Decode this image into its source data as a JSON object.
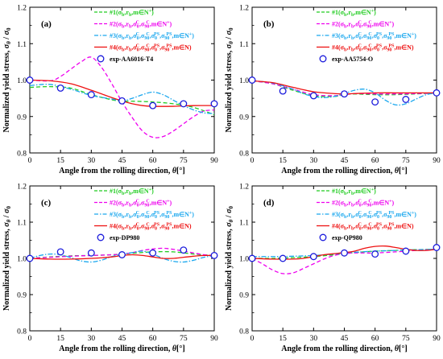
{
  "chart_data": [
    {
      "type": "line",
      "panel_label": "(a)",
      "xlabel": "Angle from the rolling direction, θ[°]",
      "ylabel": "Normalized yield stress, σθ / σ0",
      "xlim": [
        0,
        90
      ],
      "ylim": [
        0.8,
        1.2
      ],
      "xticks": [
        "0",
        "15",
        "30",
        "45",
        "60",
        "75",
        "90"
      ],
      "yticks": [
        "0.8",
        "0.9",
        "1.0",
        "1.1",
        "1.2"
      ],
      "legend_placement": "top-right",
      "series": [
        {
          "name": "#1(σb,rb,m∈N⁺)",
          "color": "#22cc22",
          "dash": "dash",
          "x": [
            0,
            10,
            20,
            30,
            40,
            45,
            50,
            60,
            70,
            80,
            90
          ],
          "y": [
            0.98,
            0.982,
            0.978,
            0.96,
            0.946,
            0.942,
            0.942,
            0.94,
            0.935,
            0.925,
            0.905
          ]
        },
        {
          "name": "#2(σb,rb,σC0,σC90,m∈N⁺)",
          "color": "#ee00ee",
          "dash": "dash",
          "x": [
            0,
            10,
            15,
            20,
            25,
            30,
            35,
            40,
            45,
            50,
            55,
            60,
            65,
            70,
            75,
            80,
            85,
            90
          ],
          "y": [
            1.0,
            0.998,
            1.01,
            1.03,
            1.05,
            1.063,
            1.035,
            0.99,
            0.94,
            0.897,
            0.86,
            0.843,
            0.845,
            0.86,
            0.88,
            0.9,
            0.915,
            0.918
          ]
        },
        {
          "name": "#3(σb,rb,σC0,σC90,σPS0,σPS90,m∈N⁺)",
          "color": "#1aa7ee",
          "dash": "dashdot",
          "x": [
            0,
            10,
            20,
            30,
            40,
            45,
            50,
            55,
            60,
            65,
            70,
            75,
            80,
            85,
            90
          ],
          "y": [
            0.985,
            0.988,
            0.975,
            0.958,
            0.948,
            0.943,
            0.95,
            0.96,
            0.967,
            0.96,
            0.945,
            0.93,
            0.918,
            0.91,
            0.908
          ]
        },
        {
          "name": "#4(σb,rb,σC0,σC90,σPS0,σPS90,m∈N)",
          "color": "#ee1111",
          "dash": "solid",
          "x": [
            0,
            10,
            20,
            30,
            40,
            45,
            50,
            55,
            60,
            70,
            80,
            90
          ],
          "y": [
            1.0,
            0.998,
            0.99,
            0.972,
            0.952,
            0.943,
            0.935,
            0.93,
            0.928,
            0.928,
            0.93,
            0.93
          ]
        }
      ],
      "experiment": {
        "name": "exp-AA6016-T4",
        "color": "#1a1adc",
        "x": [
          0,
          15,
          30,
          45,
          60,
          75,
          90
        ],
        "y": [
          1.0,
          0.978,
          0.96,
          0.943,
          0.93,
          0.935,
          0.935
        ]
      }
    },
    {
      "type": "line",
      "panel_label": "(b)",
      "xlabel": "Angle from the rolling direction, θ[°]",
      "ylabel": "Normalized yield stress, σθ / σ0",
      "xlim": [
        0,
        90
      ],
      "ylim": [
        0.8,
        1.2
      ],
      "xticks": [
        "0",
        "15",
        "30",
        "45",
        "60",
        "75",
        "90"
      ],
      "yticks": [
        "0.8",
        "0.9",
        "1.0",
        "1.1",
        "1.2"
      ],
      "legend_placement": "top-right",
      "series": [
        {
          "name": "#1(σb,rb,m∈N⁺)",
          "color": "#22cc22",
          "dash": "dash",
          "x": [
            0,
            10,
            20,
            30,
            40,
            45,
            50,
            60,
            70,
            80,
            90
          ],
          "y": [
            0.998,
            0.99,
            0.972,
            0.957,
            0.955,
            0.96,
            0.962,
            0.96,
            0.96,
            0.962,
            0.965
          ]
        },
        {
          "name": "#2(σb,rb,σC0,σC90,m∈N⁺)",
          "color": "#ee00ee",
          "dash": "dash",
          "x": [
            0,
            10,
            20,
            30,
            40,
            45,
            50,
            60,
            70,
            80,
            90
          ],
          "y": [
            0.998,
            0.99,
            0.975,
            0.96,
            0.957,
            0.96,
            0.963,
            0.962,
            0.962,
            0.963,
            0.965
          ]
        },
        {
          "name": "#3(σb,rb,σC0,σC90,σPS0,σPS90,m∈N⁺)",
          "color": "#1aa7ee",
          "dash": "dashdot",
          "x": [
            0,
            10,
            20,
            25,
            30,
            35,
            40,
            45,
            50,
            55,
            60,
            65,
            70,
            75,
            80,
            85,
            90
          ],
          "y": [
            0.998,
            0.992,
            0.975,
            0.963,
            0.955,
            0.952,
            0.955,
            0.963,
            0.972,
            0.975,
            0.965,
            0.945,
            0.932,
            0.935,
            0.948,
            0.96,
            0.965
          ]
        },
        {
          "name": "#4(σb,rb,σC0,σC90,σPS0,σPS90,m∈N)",
          "color": "#ee1111",
          "dash": "solid",
          "x": [
            0,
            10,
            20,
            30,
            40,
            45,
            50,
            60,
            70,
            80,
            90
          ],
          "y": [
            0.998,
            0.993,
            0.98,
            0.968,
            0.963,
            0.962,
            0.963,
            0.965,
            0.965,
            0.965,
            0.965
          ]
        }
      ],
      "experiment": {
        "name": "exp-AA5754-O",
        "color": "#1a1adc",
        "x": [
          0,
          15,
          30,
          45,
          60,
          75,
          90
        ],
        "y": [
          1.0,
          0.97,
          0.957,
          0.962,
          0.94,
          0.947,
          0.965
        ]
      }
    },
    {
      "type": "line",
      "panel_label": "(c)",
      "xlabel": "Angle from the rolling direction, θ[°]",
      "ylabel": "Normalized yield stress, σθ / σ0",
      "xlim": [
        0,
        90
      ],
      "ylim": [
        0.8,
        1.2
      ],
      "xticks": [
        "0",
        "15",
        "30",
        "45",
        "60",
        "75",
        "90"
      ],
      "yticks": [
        "0.8",
        "0.9",
        "1.0",
        "1.1",
        "1.2"
      ],
      "legend_placement": "top-right",
      "series": [
        {
          "name": "#1(σb,rb,m∈N⁺)",
          "color": "#22cc22",
          "dash": "dash",
          "x": [
            0,
            10,
            20,
            30,
            40,
            45,
            50,
            60,
            70,
            80,
            90
          ],
          "y": [
            1.0,
            1.004,
            1.007,
            1.008,
            1.01,
            1.012,
            1.014,
            1.018,
            1.018,
            1.012,
            1.008
          ]
        },
        {
          "name": "#2(σb,rb,σC0,σC90,m∈N⁺)",
          "color": "#ee00ee",
          "dash": "dash",
          "x": [
            0,
            10,
            20,
            30,
            40,
            45,
            50,
            55,
            60,
            65,
            70,
            75,
            80,
            85,
            90
          ],
          "y": [
            1.0,
            1.003,
            1.006,
            1.008,
            1.01,
            1.012,
            1.016,
            1.022,
            1.026,
            1.028,
            1.025,
            1.02,
            1.015,
            1.01,
            1.008
          ]
        },
        {
          "name": "#3(σb,rb,σC0,σC90,σPS0,σPS90,m∈N⁺)",
          "color": "#1aa7ee",
          "dash": "dashdot",
          "x": [
            0,
            5,
            10,
            15,
            20,
            25,
            30,
            35,
            40,
            45,
            50,
            55,
            60,
            65,
            70,
            75,
            80,
            85,
            90
          ],
          "y": [
            1.0,
            1.008,
            1.012,
            1.01,
            1.002,
            0.993,
            0.99,
            0.995,
            1.005,
            1.012,
            1.016,
            1.02,
            1.012,
            1.0,
            0.992,
            0.99,
            0.995,
            1.003,
            1.008
          ]
        },
        {
          "name": "#4(σb,rb,σC0,σC90,σPS0,σPS90,m∈N)",
          "color": "#ee1111",
          "dash": "solid",
          "x": [
            0,
            10,
            20,
            30,
            40,
            45,
            50,
            55,
            60,
            65,
            70,
            75,
            80,
            85,
            90
          ],
          "y": [
            1.0,
            0.998,
            0.998,
            1.0,
            1.004,
            1.008,
            1.01,
            1.008,
            1.004,
            1.0,
            1.0,
            1.003,
            1.006,
            1.008,
            1.008
          ]
        }
      ],
      "experiment": {
        "name": "exp-DP980",
        "color": "#1a1adc",
        "x": [
          0,
          15,
          30,
          45,
          60,
          75,
          90
        ],
        "y": [
          1.0,
          1.018,
          1.015,
          1.01,
          1.015,
          1.023,
          1.008
        ]
      }
    },
    {
      "type": "line",
      "panel_label": "(d)",
      "xlabel": "Angle from the rolling direction, θ[°]",
      "ylabel": "Normalized yield stress, σθ / σ0",
      "xlim": [
        0,
        90
      ],
      "ylim": [
        0.8,
        1.2
      ],
      "xticks": [
        "0",
        "15",
        "30",
        "45",
        "60",
        "75",
        "90"
      ],
      "yticks": [
        "0.8",
        "0.9",
        "1.0",
        "1.1",
        "1.2"
      ],
      "legend_placement": "top-right",
      "series": [
        {
          "name": "#1(σb,rb,m∈N⁺)",
          "color": "#22cc22",
          "dash": "dash",
          "x": [
            0,
            10,
            20,
            30,
            40,
            45,
            50,
            60,
            70,
            80,
            90
          ],
          "y": [
            1.0,
            1.0,
            1.002,
            1.005,
            1.01,
            1.013,
            1.016,
            1.02,
            1.022,
            1.024,
            1.025
          ]
        },
        {
          "name": "#2(σb,rb,σC0,σC90,m∈N⁺)",
          "color": "#ee00ee",
          "dash": "dash",
          "x": [
            0,
            5,
            10,
            15,
            20,
            25,
            30,
            35,
            40,
            45,
            50,
            55,
            60,
            70,
            80,
            90
          ],
          "y": [
            1.0,
            0.985,
            0.968,
            0.958,
            0.96,
            0.972,
            0.985,
            0.998,
            1.008,
            1.013,
            1.015,
            1.015,
            1.015,
            1.018,
            1.022,
            1.025
          ]
        },
        {
          "name": "#3(σb,rb,σC0,σC90,σPS0,σPS90,m∈N⁺)",
          "color": "#1aa7ee",
          "dash": "dashdot",
          "x": [
            0,
            10,
            20,
            30,
            40,
            45,
            50,
            60,
            70,
            80,
            90
          ],
          "y": [
            1.005,
            1.005,
            1.006,
            1.008,
            1.012,
            1.015,
            1.017,
            1.02,
            1.022,
            1.024,
            1.025
          ]
        },
        {
          "name": "#4(σb,rb,σC0,σC90,σPS0,σPS90,m∈N)",
          "color": "#ee1111",
          "dash": "solid",
          "x": [
            0,
            10,
            20,
            25,
            30,
            35,
            40,
            45,
            50,
            55,
            60,
            65,
            70,
            75,
            80,
            85,
            90
          ],
          "y": [
            1.0,
            0.998,
            0.998,
            1.0,
            1.005,
            1.01,
            1.013,
            1.016,
            1.02,
            1.028,
            1.033,
            1.034,
            1.03,
            1.025,
            1.022,
            1.022,
            1.025
          ]
        }
      ],
      "experiment": {
        "name": "exp-QP980",
        "color": "#1a1adc",
        "x": [
          0,
          15,
          30,
          45,
          60,
          75,
          90
        ],
        "y": [
          1.0,
          1.0,
          1.005,
          1.015,
          1.012,
          1.02,
          1.03
        ]
      }
    }
  ]
}
